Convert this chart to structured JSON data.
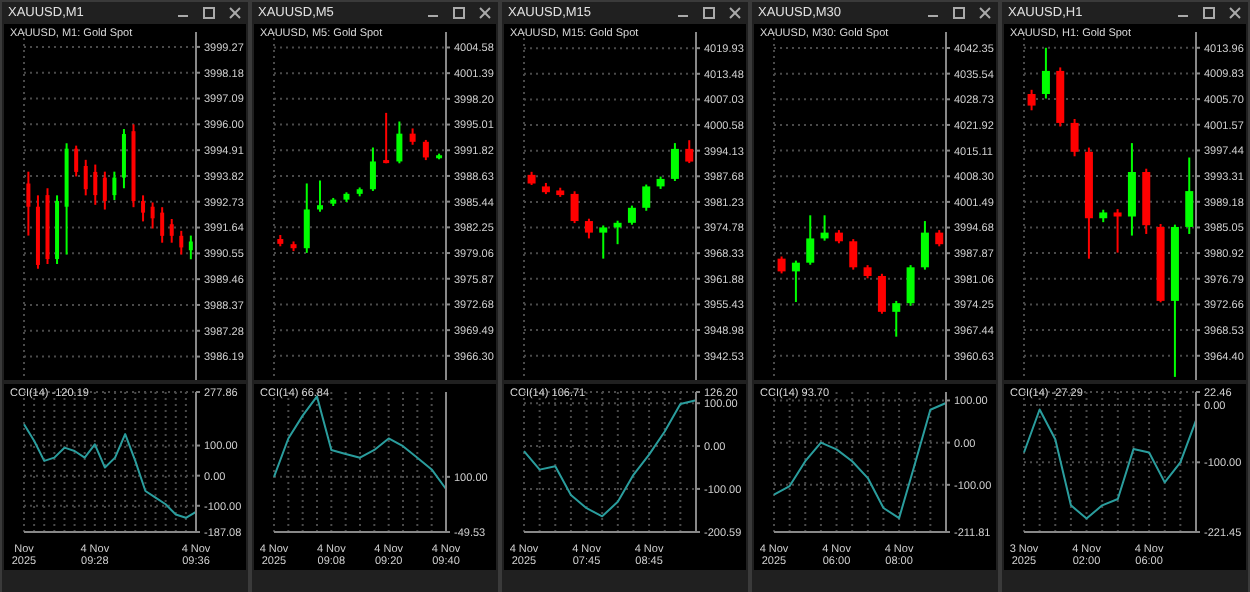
{
  "chart_data": [
    {
      "type": "candlestick",
      "title": "XAUUSD,M1",
      "subtitle": "XAUUSD, M1: Gold Spot",
      "categories": [
        null,
        null,
        null,
        null,
        null,
        null,
        null,
        null,
        null,
        null,
        null,
        null,
        null,
        null,
        null,
        null,
        null,
        null
      ],
      "ohlc": [
        [
          3993.5,
          3994.0,
          3991.3,
          3992.52
        ],
        [
          3992.52,
          3993.0,
          3989.9,
          3990.06
        ],
        [
          3993.01,
          3993.3,
          3990.1,
          3990.31
        ],
        [
          3990.31,
          3993.0,
          3990.1,
          3992.76
        ],
        [
          3992.52,
          3995.2,
          3990.5,
          3994.97
        ],
        [
          3994.97,
          3995.1,
          3993.8,
          3993.99
        ],
        [
          3994.24,
          3994.5,
          3993.0,
          3993.26
        ],
        [
          3993.99,
          3994.3,
          3992.6,
          3993.01
        ],
        [
          3993.75,
          3994.0,
          3992.4,
          3992.76
        ],
        [
          3993.01,
          3994.0,
          3992.8,
          3993.75
        ],
        [
          3993.75,
          3995.8,
          3993.3,
          3995.59
        ],
        [
          3995.71,
          3996.0,
          3992.5,
          3992.76
        ],
        [
          3992.76,
          3993.0,
          3991.9,
          3992.27
        ],
        [
          3992.52,
          3992.7,
          3991.6,
          3992.03
        ],
        [
          3992.27,
          3992.5,
          3991.0,
          3991.29
        ],
        [
          3991.78,
          3992.0,
          3991.0,
          3991.29
        ],
        [
          3991.29,
          3991.5,
          3990.5,
          3990.8
        ],
        [
          3990.68,
          3991.3,
          3990.3,
          3991.05
        ]
      ],
      "ylim": [
        3985.2,
        3999.9
      ],
      "yticks": [
        3986.19,
        3987.28,
        3988.37,
        3989.46,
        3990.55,
        3991.64,
        3992.73,
        3993.82,
        3994.91,
        {
          "value": 3996,
          "label": "3996.00"
        },
        3997.09,
        3998.18,
        3999.27
      ],
      "grid": true,
      "tick_labels": "y"
    },
    {
      "type": "line",
      "title": "CCI(14) -120.19",
      "categories": [
        "Nov 2025",
        null,
        null,
        null,
        null,
        null,
        null,
        "4 Nov 09:28",
        null,
        null,
        null,
        null,
        null,
        null,
        null,
        null,
        null,
        "4 Nov 09:36"
      ],
      "series": [
        {
          "color": "#2a9d9d",
          "values": [
            171,
            116,
            49,
            60,
            93,
            82,
            60,
            104,
            27,
            60,
            138,
            49,
            -51,
            -73,
            -95,
            -129,
            -140,
            -120
          ]
        }
      ],
      "ylim": [
        -187.08,
        277.86
      ],
      "yticks": [
        -187.08,
        {
          "value": -100,
          "label": "-100.00"
        },
        {
          "value": 0,
          "label": "0.00"
        },
        {
          "value": 100,
          "label": "100.00"
        },
        277.86
      ],
      "grid": true
    },
    {
      "type": "candlestick",
      "title": "XAUUSD,M5",
      "subtitle": "XAUUSD, M5: Gold Spot",
      "categories": [
        null,
        null,
        null,
        null,
        null,
        null,
        null,
        null,
        null,
        null,
        null,
        null,
        null
      ],
      "ohlc": [
        [
          3980.8,
          3981.3,
          3979.9,
          3980.2
        ],
        [
          3980.16,
          3980.5,
          3979.3,
          3979.66
        ],
        [
          3979.66,
          3987.7,
          3979.08,
          3984.47
        ],
        [
          3984.47,
          3988.06,
          3984.2,
          3985.0
        ],
        [
          3985.19,
          3985.9,
          3984.9,
          3985.69
        ],
        [
          3985.69,
          3986.6,
          3985.4,
          3986.41
        ],
        [
          3986.41,
          3987.2,
          3986.1,
          3986.98
        ],
        [
          3986.98,
          3992.16,
          3986.77,
          3990.43
        ],
        [
          3990.6,
          3996.46,
          3990.2,
          3990.45
        ],
        [
          3990.43,
          3995.39,
          3990.2,
          3993.88
        ],
        [
          3993.88,
          3994.53,
          3992.5,
          3992.87
        ],
        [
          3992.87,
          3993.1,
          3990.6,
          3990.93
        ],
        [
          3990.93,
          3991.4,
          3990.7,
          3991.2
        ]
      ],
      "ylim": [
        3963.3,
        4006.5
      ],
      "yticks": [
        {
          "value": 3966.3,
          "label": "3966.30"
        },
        3969.49,
        3972.68,
        3975.87,
        3979.06,
        3982.25,
        3985.44,
        3988.63,
        3991.82,
        3995.01,
        {
          "value": 3998.2,
          "label": "3998.20"
        },
        4001.39,
        4004.58
      ],
      "grid": true,
      "tick_labels": "y"
    },
    {
      "type": "line",
      "title": "CCI(14) 66.84",
      "categories": [
        "4 Nov 2025",
        null,
        null,
        null,
        "4 Nov 09:08",
        null,
        null,
        null,
        "4 Nov 09:20",
        null,
        null,
        null,
        "4 Nov 09:40"
      ],
      "series": [
        {
          "color": "#2a9d9d",
          "values": [
            100,
            204,
            266,
            318,
            173,
            162,
            152,
            173,
            204,
            183,
            152,
            120,
            67
          ]
        }
      ],
      "ylim": [
        -49.53,
        330
      ],
      "yticks": [
        -49.53,
        {
          "value": 100,
          "label": "100.00"
        }
      ],
      "grid": true
    },
    {
      "type": "candlestick",
      "title": "XAUUSD,M15",
      "subtitle": "XAUUSD, M15: Gold Spot",
      "categories": [
        null,
        null,
        null,
        null,
        null,
        null,
        null,
        null,
        null,
        null,
        null,
        null
      ],
      "ohlc": [
        [
          3988.04,
          3988.8,
          3985.5,
          3985.86
        ],
        [
          3985.13,
          3986.0,
          3983.2,
          3983.67
        ],
        [
          3984.11,
          3984.8,
          3982.5,
          3982.95
        ],
        [
          3983.24,
          3983.9,
          3975.9,
          3976.41
        ],
        [
          3976.41,
          3977.0,
          3972.04,
          3973.5
        ],
        [
          3973.5,
          3975.3,
          3966.95,
          3974.81
        ],
        [
          3974.81,
          3976.5,
          3970.59,
          3975.97
        ],
        [
          3975.97,
          3980.3,
          3975.5,
          3979.75
        ],
        [
          3979.75,
          3985.6,
          3979.0,
          3985.13
        ],
        [
          3985.13,
          3987.6,
          3984.5,
          3987.02
        ],
        [
          3987.02,
          3996.03,
          3986.5,
          3994.58
        ],
        [
          3994.58,
          3996.76,
          3991.0,
          3991.38
        ]
      ],
      "ylim": [
        3936.4,
        4024
      ],
      "yticks": [
        3942.53,
        3948.98,
        3955.43,
        3961.88,
        3968.33,
        3974.78,
        3981.23,
        3987.68,
        3994.13,
        4000.58,
        4007.03,
        4013.48,
        4019.93
      ],
      "grid": true,
      "tick_labels": "y"
    },
    {
      "type": "line",
      "title": "CCI(14) 106.71",
      "categories": [
        "4 Nov 2025",
        null,
        null,
        null,
        "4 Nov 07:45",
        null,
        null,
        null,
        "4 Nov 08:45",
        null,
        null,
        null
      ],
      "series": [
        {
          "color": "#2a9d9d",
          "values": [
            -12,
            -55,
            -47,
            -114,
            -145,
            -164,
            -130,
            -67,
            -20,
            34,
            98,
            107
          ]
        }
      ],
      "ylim": [
        -200.59,
        126.2
      ],
      "yticks": [
        -200.59,
        {
          "value": -100,
          "label": "-100.00"
        },
        {
          "value": 0,
          "label": "0.00"
        },
        {
          "value": 100,
          "label": "100.00"
        },
        {
          "value": 126.2,
          "label": "126.20"
        }
      ],
      "grid": true
    },
    {
      "type": "candlestick",
      "title": "XAUUSD,M30",
      "subtitle": "XAUUSD, M30: Gold Spot",
      "categories": [
        null,
        null,
        null,
        null,
        null,
        null,
        null,
        null,
        null,
        null,
        null,
        null
      ],
      "ohlc": [
        [
          3986.42,
          3987.0,
          3982.5,
          3983.04
        ],
        [
          3983.04,
          3985.9,
          3974.91,
          3985.35
        ],
        [
          3985.35,
          3997.93,
          3984.8,
          3991.79
        ],
        [
          3991.79,
          3997.93,
          3991.2,
          3993.33
        ],
        [
          3993.33,
          3994.0,
          3990.5,
          3991.03
        ],
        [
          3991.03,
          3991.6,
          3983.5,
          3984.12
        ],
        [
          3984.12,
          3984.7,
          3981.2,
          3981.82
        ],
        [
          3981.82,
          3982.4,
          3971.8,
          3972.3
        ],
        [
          3972.3,
          3975.2,
          3965.7,
          3974.6
        ],
        [
          3974.6,
          3984.7,
          3973.9,
          3984.12
        ],
        [
          3984.12,
          3996.4,
          3983.5,
          3993.33
        ],
        [
          3993.33,
          3994.0,
          3989.7,
          3990.26
        ]
      ],
      "ylim": [
        3954.2,
        4046.6
      ],
      "yticks": [
        3960.63,
        3967.44,
        3974.25,
        3981.06,
        3987.87,
        3994.68,
        4001.49,
        {
          "value": 4008.3,
          "label": "4008.30"
        },
        4015.11,
        4021.92,
        4028.73,
        4035.54,
        4042.35
      ],
      "grid": true,
      "tick_labels": "y"
    },
    {
      "type": "line",
      "title": "CCI(14) 93.70",
      "categories": [
        "4 Nov 2025",
        null,
        null,
        null,
        "4 Nov 06:00",
        null,
        null,
        null,
        "4 Nov 08:00",
        null,
        null,
        null
      ],
      "series": [
        {
          "color": "#2a9d9d",
          "values": [
            -123,
            -103,
            -44,
            0,
            -16,
            -44,
            -84,
            -155,
            -179,
            -52,
            78,
            94
          ]
        }
      ],
      "ylim": [
        -211.81,
        120
      ],
      "yticks": [
        -211.81,
        {
          "value": -100,
          "label": "-100.00"
        },
        {
          "value": 0,
          "label": "0.00"
        },
        {
          "value": 100,
          "label": "100.00"
        }
      ],
      "grid": true
    },
    {
      "type": "candlestick",
      "title": "XAUUSD,H1",
      "subtitle": "XAUUSD, H1: Gold Spot",
      "categories": [
        null,
        null,
        null,
        null,
        null,
        null,
        null,
        null,
        null,
        null,
        null,
        null
      ],
      "ohlc": [
        [
          4006.52,
          4007.2,
          4003.9,
          4004.66
        ],
        [
          4006.52,
          4013.96,
          4005.8,
          4010.24
        ],
        [
          4010.24,
          4010.8,
          4001.3,
          4001.87
        ],
        [
          4001.87,
          4002.5,
          3996.5,
          3997.22
        ],
        [
          3997.22,
          3997.9,
          3980.02,
          3986.53
        ],
        [
          3986.53,
          3987.9,
          3985.9,
          3987.46
        ],
        [
          3987.46,
          3988.0,
          3981.0,
          3986.81
        ],
        [
          3986.81,
          3998.62,
          3983.74,
          3993.97
        ],
        [
          3993.97,
          3994.5,
          3984.0,
          3985.41
        ],
        [
          3985.13,
          3985.6,
          3973.0,
          3973.23
        ],
        [
          3973.23,
          3985.5,
          3961.0,
          3985.13
        ],
        [
          3985.13,
          3996.3,
          3984.0,
          3990.9
        ]
      ],
      "ylim": [
        3960.5,
        4016.5
      ],
      "yticks": [
        {
          "value": 3964.4,
          "label": "3964.40"
        },
        3968.53,
        3972.66,
        3976.79,
        3980.92,
        3985.05,
        3989.18,
        3993.31,
        3997.44,
        4001.57,
        {
          "value": 4005.7,
          "label": "4005.70"
        },
        4009.83,
        4013.96
      ],
      "grid": true,
      "tick_labels": "y"
    },
    {
      "type": "line",
      "title": "CCI(14) -27.29",
      "categories": [
        "3 Nov 2025",
        null,
        null,
        null,
        "4 Nov 02:00",
        null,
        null,
        null,
        "4 Nov 06:00",
        null,
        null,
        null
      ],
      "series": [
        {
          "color": "#2a9d9d",
          "values": [
            -83,
            -8,
            -60,
            -175,
            -198,
            -175,
            -164,
            -77,
            -83,
            -135,
            -100,
            -27
          ]
        }
      ],
      "ylim": [
        -221.45,
        22.46
      ],
      "yticks": [
        -221.45,
        {
          "value": -100,
          "label": "-100.00"
        },
        {
          "value": 0,
          "label": "0.00"
        },
        22.46
      ],
      "grid": true
    }
  ]
}
